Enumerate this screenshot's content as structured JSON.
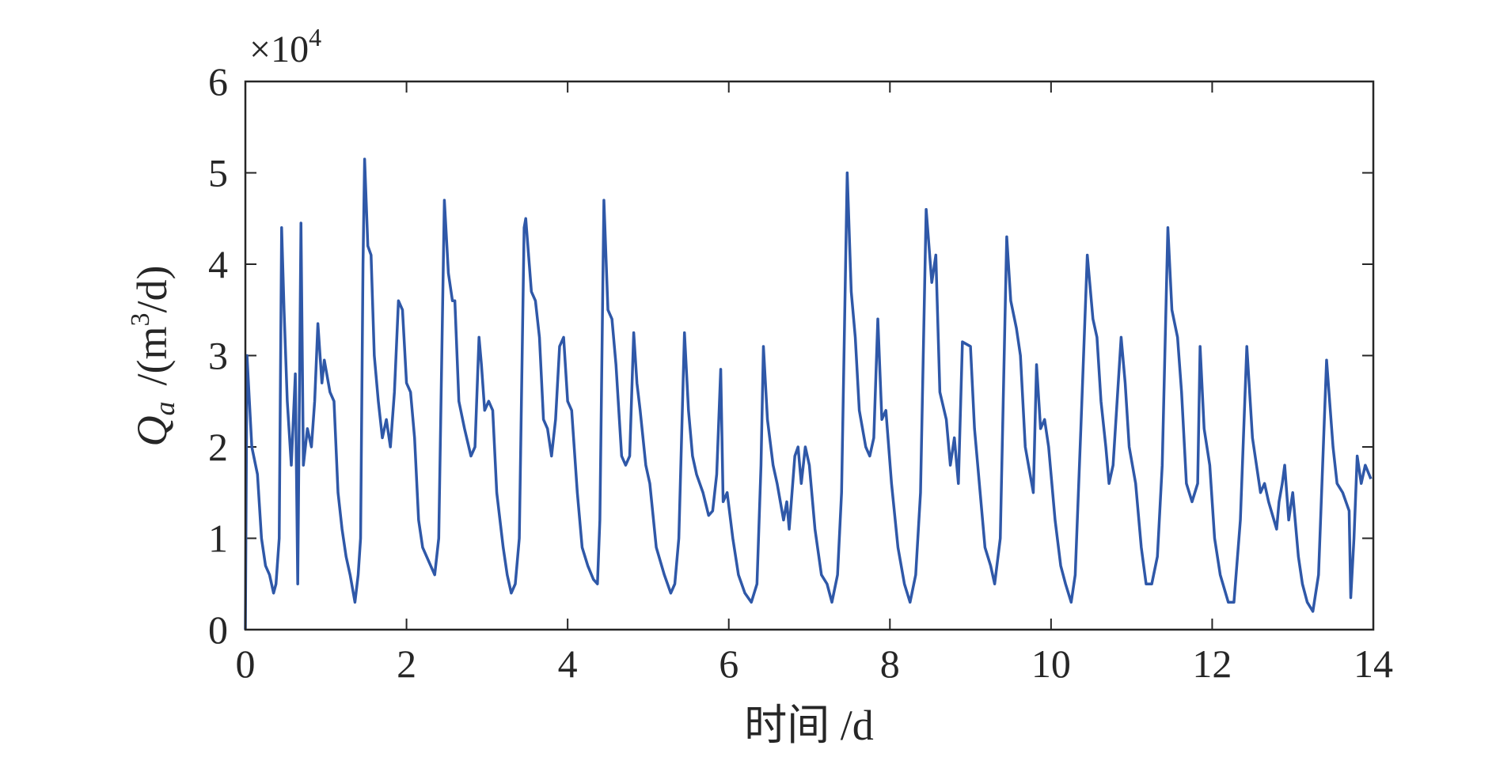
{
  "chart_data": {
    "type": "line",
    "xlabel": "时间 /d",
    "ylabel": {
      "symbol": "Q",
      "subscript": "a",
      "unit_start": "/(m",
      "unit_exponent": "3",
      "unit_end": "/d)"
    },
    "y_multiplier": {
      "base": "×10",
      "exponent": "4"
    },
    "xlim": [
      0,
      14
    ],
    "xticks": [
      0,
      2,
      4,
      6,
      8,
      10,
      12,
      14
    ],
    "ylim": [
      0,
      6
    ],
    "yticks": [
      0,
      1,
      2,
      3,
      4,
      5,
      6
    ],
    "grid": false,
    "series": [
      {
        "color": "#2f58a8",
        "x": [
          0,
          0.02,
          0.08,
          0.15,
          0.2,
          0.25,
          0.3,
          0.35,
          0.38,
          0.42,
          0.45,
          0.48,
          0.52,
          0.57,
          0.62,
          0.65,
          0.69,
          0.72,
          0.77,
          0.82,
          0.86,
          0.9,
          0.95,
          0.98,
          1.05,
          1.1,
          1.15,
          1.2,
          1.25,
          1.3,
          1.36,
          1.4,
          1.43,
          1.46,
          1.48,
          1.52,
          1.56,
          1.6,
          1.65,
          1.7,
          1.75,
          1.8,
          1.85,
          1.9,
          1.95,
          2.0,
          2.05,
          2.1,
          2.15,
          2.2,
          2.3,
          2.35,
          2.4,
          2.47,
          2.52,
          2.57,
          2.6,
          2.65,
          2.72,
          2.8,
          2.85,
          2.9,
          2.93,
          2.97,
          3.02,
          3.07,
          3.12,
          3.2,
          3.25,
          3.3,
          3.35,
          3.4,
          3.46,
          3.48,
          3.55,
          3.6,
          3.65,
          3.7,
          3.75,
          3.8,
          3.85,
          3.9,
          3.95,
          4.0,
          4.05,
          4.12,
          4.18,
          4.25,
          4.32,
          4.37,
          4.4,
          4.45,
          4.5,
          4.55,
          4.6,
          4.67,
          4.72,
          4.77,
          4.82,
          4.86,
          4.9,
          4.97,
          5.02,
          5.1,
          5.2,
          5.28,
          5.33,
          5.38,
          5.45,
          5.5,
          5.55,
          5.6,
          5.68,
          5.75,
          5.8,
          5.85,
          5.9,
          5.93,
          5.98,
          6.05,
          6.12,
          6.2,
          6.28,
          6.35,
          6.4,
          6.43,
          6.48,
          6.55,
          6.6,
          6.68,
          6.72,
          6.75,
          6.82,
          6.86,
          6.9,
          6.95,
          7.0,
          7.07,
          7.15,
          7.22,
          7.28,
          7.35,
          7.4,
          7.47,
          7.52,
          7.57,
          7.62,
          7.7,
          7.75,
          7.8,
          7.85,
          7.9,
          7.95,
          8.02,
          8.1,
          8.18,
          8.25,
          8.32,
          8.38,
          8.45,
          8.52,
          8.57,
          8.62,
          8.7,
          8.75,
          8.8,
          8.85,
          8.9,
          9.0,
          9.05,
          9.12,
          9.18,
          9.25,
          9.3,
          9.37,
          9.45,
          9.5,
          9.57,
          9.62,
          9.68,
          9.72,
          9.78,
          9.82,
          9.87,
          9.92,
          9.97,
          10.05,
          10.12,
          10.18,
          10.25,
          10.3,
          10.37,
          10.45,
          10.52,
          10.57,
          10.62,
          10.68,
          10.72,
          10.77,
          10.87,
          10.92,
          10.97,
          11.05,
          11.12,
          11.18,
          11.25,
          11.32,
          11.38,
          11.45,
          11.5,
          11.57,
          11.62,
          11.68,
          11.75,
          11.82,
          11.85,
          11.9,
          11.97,
          12.03,
          12.1,
          12.2,
          12.27,
          12.35,
          12.43,
          12.5,
          12.6,
          12.65,
          12.7,
          12.8,
          12.83,
          12.87,
          12.9,
          12.95,
          13.0,
          13.07,
          13.12,
          13.18,
          13.25,
          13.32,
          13.42,
          13.5,
          13.55,
          13.62,
          13.7,
          13.72,
          13.76,
          13.8,
          13.85,
          13.9,
          13.97
        ],
        "values": [
          0,
          3.0,
          2.0,
          1.7,
          1.0,
          0.7,
          0.6,
          0.4,
          0.5,
          1.0,
          4.4,
          3.5,
          2.5,
          1.8,
          2.8,
          0.5,
          4.45,
          1.8,
          2.2,
          2.0,
          2.5,
          3.35,
          2.7,
          2.95,
          2.6,
          2.5,
          1.5,
          1.1,
          0.8,
          0.6,
          0.3,
          0.6,
          1.0,
          4.0,
          5.15,
          4.2,
          4.1,
          3.0,
          2.5,
          2.1,
          2.3,
          2.0,
          2.6,
          3.6,
          3.5,
          2.7,
          2.6,
          2.1,
          1.2,
          0.9,
          0.7,
          0.6,
          1.0,
          4.7,
          3.9,
          3.6,
          3.6,
          2.5,
          2.2,
          1.9,
          2.0,
          3.2,
          2.9,
          2.4,
          2.5,
          2.4,
          1.5,
          0.9,
          0.6,
          0.4,
          0.5,
          1.0,
          4.4,
          4.5,
          3.7,
          3.6,
          3.2,
          2.3,
          2.2,
          1.9,
          2.3,
          3.1,
          3.2,
          2.5,
          2.4,
          1.5,
          0.9,
          0.7,
          0.55,
          0.5,
          1.2,
          4.7,
          3.5,
          3.4,
          2.9,
          1.9,
          1.8,
          1.9,
          3.25,
          2.7,
          2.4,
          1.8,
          1.6,
          0.9,
          0.6,
          0.4,
          0.5,
          1.0,
          3.25,
          2.4,
          1.9,
          1.7,
          1.5,
          1.25,
          1.3,
          1.7,
          2.85,
          1.4,
          1.5,
          1.0,
          0.6,
          0.4,
          0.3,
          0.5,
          1.8,
          3.1,
          2.3,
          1.8,
          1.6,
          1.2,
          1.4,
          1.1,
          1.9,
          2.0,
          1.6,
          2.0,
          1.8,
          1.1,
          0.6,
          0.5,
          0.3,
          0.6,
          1.5,
          5.0,
          3.7,
          3.2,
          2.4,
          2.0,
          1.9,
          2.1,
          3.4,
          2.3,
          2.4,
          1.6,
          0.9,
          0.5,
          0.3,
          0.6,
          1.5,
          4.6,
          3.8,
          4.1,
          2.6,
          2.3,
          1.8,
          2.1,
          1.6,
          3.15,
          3.1,
          2.2,
          1.5,
          0.9,
          0.7,
          0.5,
          1.0,
          4.3,
          3.6,
          3.3,
          3.0,
          2.0,
          1.8,
          1.5,
          2.9,
          2.2,
          2.3,
          2.0,
          1.2,
          0.7,
          0.5,
          0.3,
          0.6,
          2.2,
          4.1,
          3.4,
          3.2,
          2.5,
          2.0,
          1.6,
          1.8,
          3.2,
          2.7,
          2.0,
          1.6,
          0.9,
          0.5,
          0.5,
          0.8,
          1.8,
          4.4,
          3.5,
          3.2,
          2.6,
          1.6,
          1.4,
          1.6,
          3.1,
          2.2,
          1.8,
          1.0,
          0.6,
          0.3,
          0.3,
          1.2,
          3.1,
          2.1,
          1.5,
          1.6,
          1.4,
          1.1,
          1.4,
          1.6,
          1.8,
          1.2,
          1.5,
          0.8,
          0.5,
          0.3,
          0.2,
          0.6,
          2.95,
          2.0,
          1.6,
          1.5,
          1.3,
          0.35,
          1.0,
          1.9,
          1.6,
          1.8,
          1.65
        ]
      }
    ]
  }
}
